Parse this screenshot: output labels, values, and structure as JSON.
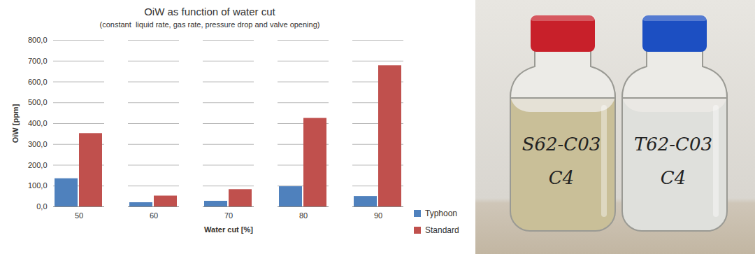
{
  "chart_data": {
    "type": "bar",
    "title": "OiW as function of water cut",
    "subtitle": "(constant  liquid rate, gas rate, pressure drop and valve opening)",
    "x_label": "Water cut [%]",
    "y_label": "OiW [ppm]",
    "categories": [
      "50",
      "60",
      "70",
      "80",
      "90"
    ],
    "series": [
      {
        "name": "Typhoon",
        "color": "#4f81bd",
        "values": [
          135,
          20,
          27,
          97,
          50
        ]
      },
      {
        "name": "Standard",
        "color": "#c0504d",
        "values": [
          352,
          52,
          83,
          425,
          678
        ]
      }
    ],
    "ylim": [
      0,
      800
    ],
    "yticks": [
      {
        "value": 0,
        "label": "0,0"
      },
      {
        "value": 100,
        "label": "100,0"
      },
      {
        "value": 200,
        "label": "200,0"
      },
      {
        "value": 300,
        "label": "300,0"
      },
      {
        "value": 400,
        "label": "400,0"
      },
      {
        "value": 500,
        "label": "500,0"
      },
      {
        "value": 600,
        "label": "600,0"
      },
      {
        "value": 700,
        "label": "700,0"
      },
      {
        "value": 800,
        "label": "800,0"
      }
    ],
    "grid": true,
    "legend": "right"
  },
  "photo": {
    "bottles": [
      {
        "label": [
          "S62-C03",
          "C4"
        ]
      },
      {
        "label": [
          "T62-C03",
          "C4"
        ]
      }
    ]
  }
}
